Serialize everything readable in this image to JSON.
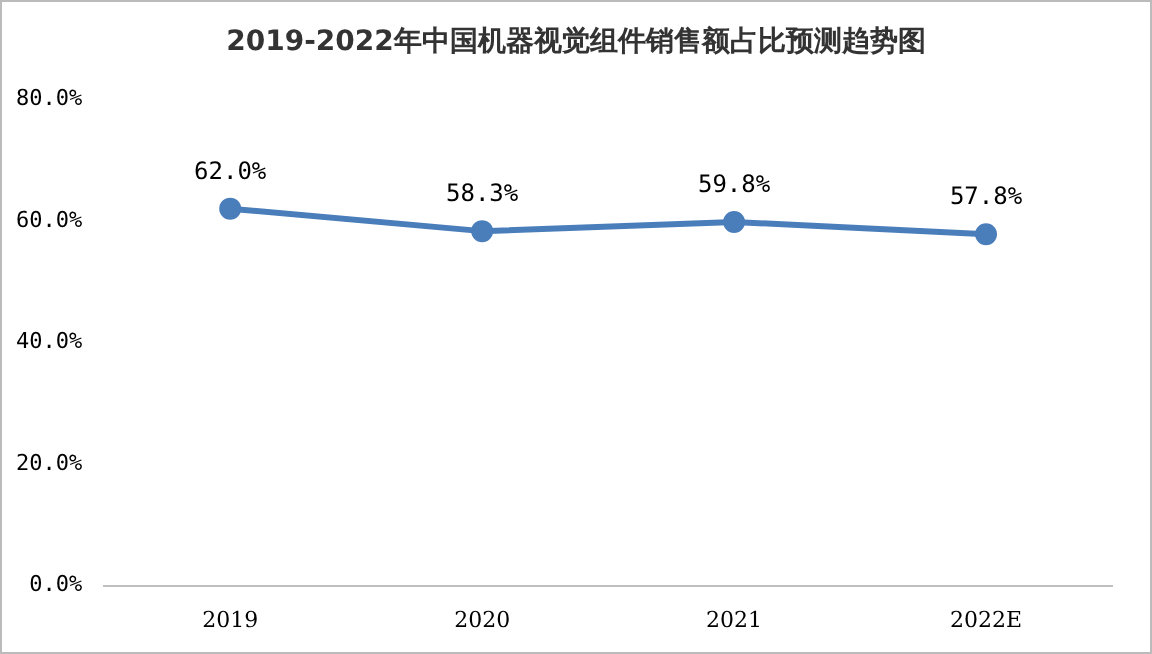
{
  "chart_data": {
    "type": "line",
    "title": "2019-2022年中国机器视觉组件销售额占比预测趋势图",
    "categories": [
      "2019",
      "2020",
      "2021",
      "2022E"
    ],
    "series": [
      {
        "color": "#4a7ebb",
        "values": [
          62.0,
          58.3,
          59.8,
          57.8
        ],
        "value_labels": [
          "62.0%",
          "58.3%",
          "59.8%",
          "57.8%"
        ]
      }
    ],
    "ylim": [
      0,
      80
    ],
    "yticks": [
      {
        "value": 0,
        "label": "0.0%"
      },
      {
        "value": 20,
        "label": "20.0%"
      },
      {
        "value": 40,
        "label": "40.0%"
      },
      {
        "value": 60,
        "label": "60.0%"
      },
      {
        "value": 80,
        "label": "80.0%"
      }
    ],
    "grid": false,
    "legend": false,
    "marker": "circle",
    "line_style": "solid"
  }
}
